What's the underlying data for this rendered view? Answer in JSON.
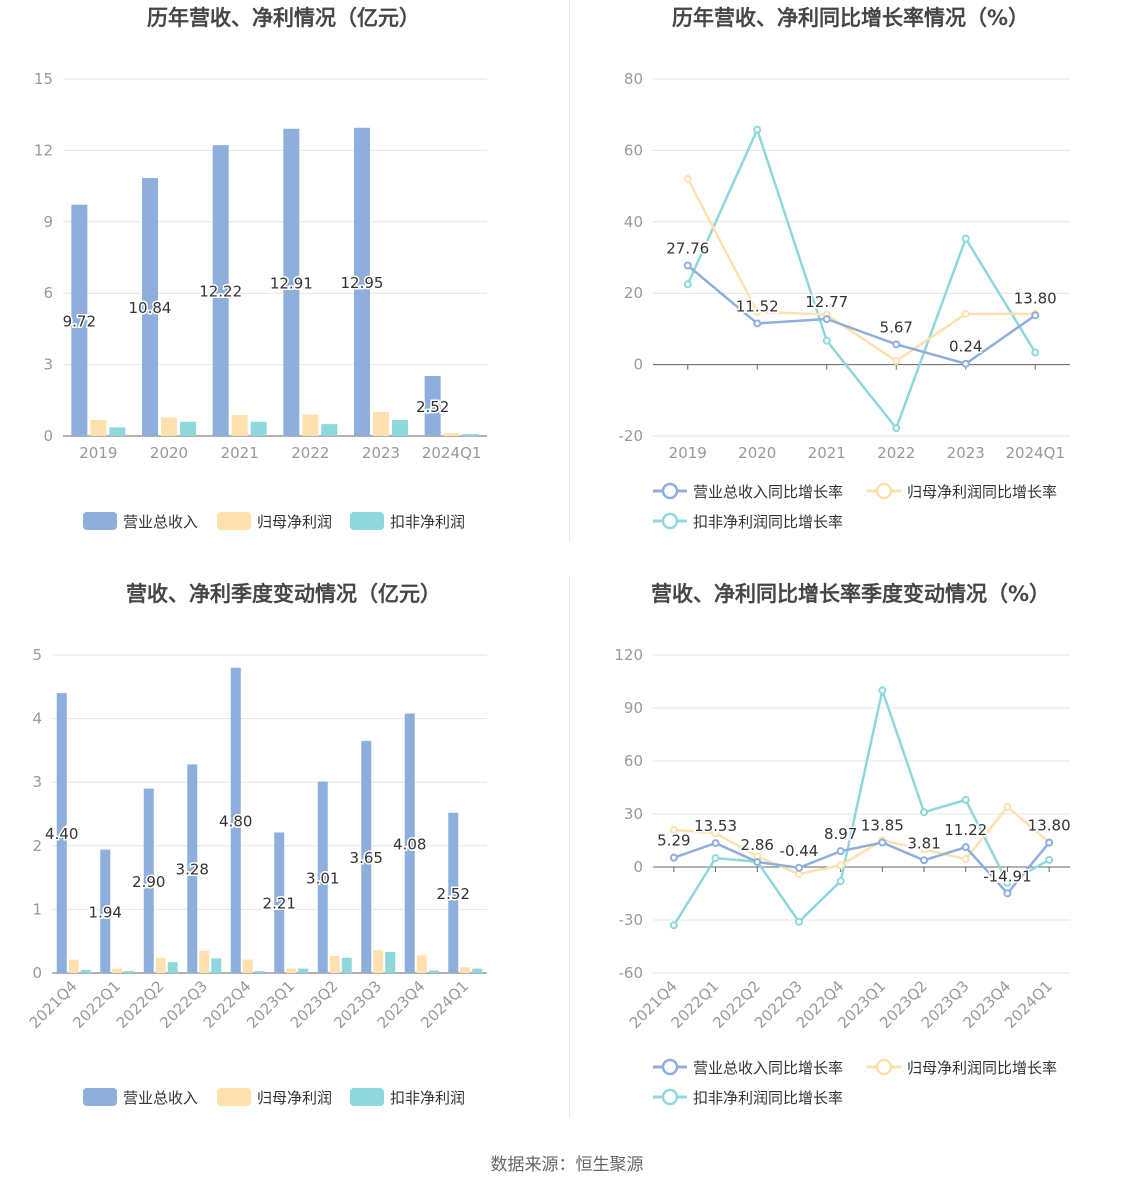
{
  "source": "数据来源：恒生聚源",
  "colors": {
    "revenue": "#8eaedc",
    "net_profit": "#ffe1b0",
    "deducted_profit": "#8ed7db",
    "axis": "#999999",
    "grid": "#e4e4e4",
    "label": "#333333"
  },
  "chart_data": [
    {
      "type": "bar",
      "title": "历年营收、净利情况（亿元）",
      "categories": [
        "2019",
        "2020",
        "2021",
        "2022",
        "2023",
        "2024Q1"
      ],
      "series": [
        {
          "name": "营业总收入",
          "values": [
            9.72,
            10.84,
            12.22,
            12.91,
            12.95,
            2.52
          ]
        },
        {
          "name": "归母净利润",
          "values": [
            0.68,
            0.78,
            0.88,
            0.9,
            1.01,
            0.12
          ]
        },
        {
          "name": "扣非净利润",
          "values": [
            0.36,
            0.6,
            0.6,
            0.5,
            0.67,
            0.08
          ]
        }
      ],
      "data_labels": [
        "9.72",
        "10.84",
        "12.22",
        "12.91",
        "12.95",
        "2.52"
      ],
      "yticks": [
        "0",
        "3",
        "6",
        "9",
        "12",
        "15"
      ],
      "ylim": [
        0,
        15
      ],
      "grid": true,
      "legend": "bottom"
    },
    {
      "type": "line",
      "title": "历年营收、净利同比增长率情况（%）",
      "categories": [
        "2019",
        "2020",
        "2021",
        "2022",
        "2023",
        "2024Q1"
      ],
      "series": [
        {
          "name": "营业总收入同比增长率",
          "values": [
            27.76,
            11.52,
            12.77,
            5.67,
            0.24,
            13.8
          ]
        },
        {
          "name": "归母净利润同比增长率",
          "values": [
            52.0,
            14.8,
            14.0,
            1.0,
            14.2,
            14.2
          ]
        },
        {
          "name": "扣非净利润同比增长率",
          "values": [
            22.5,
            65.8,
            6.7,
            -17.8,
            35.3,
            3.4
          ]
        }
      ],
      "data_labels": [
        "27.76",
        "11.52",
        "12.77",
        "5.67",
        "0.24",
        "13.80"
      ],
      "yticks": [
        "-20",
        "0",
        "20",
        "40",
        "60",
        "80"
      ],
      "ylim": [
        -20,
        80
      ],
      "grid": true,
      "legend": "bottom"
    },
    {
      "type": "bar",
      "title": "营收、净利季度变动情况（亿元）",
      "categories": [
        "2021Q4",
        "2022Q1",
        "2022Q2",
        "2022Q3",
        "2022Q4",
        "2023Q1",
        "2023Q2",
        "2023Q3",
        "2023Q4",
        "2024Q1"
      ],
      "series": [
        {
          "name": "营业总收入",
          "values": [
            4.4,
            1.94,
            2.9,
            3.28,
            4.8,
            2.21,
            3.01,
            3.65,
            4.08,
            2.52
          ]
        },
        {
          "name": "归母净利润",
          "values": [
            0.21,
            0.07,
            0.24,
            0.35,
            0.21,
            0.07,
            0.27,
            0.36,
            0.28,
            0.09
          ]
        },
        {
          "name": "扣非净利润",
          "values": [
            0.05,
            0.03,
            0.17,
            0.23,
            0.03,
            0.07,
            0.24,
            0.33,
            0.04,
            0.07
          ]
        }
      ],
      "data_labels": [
        "4.40",
        "1.94",
        "2.90",
        "3.28",
        "4.80",
        "2.21",
        "3.01",
        "3.65",
        "4.08",
        "2.52"
      ],
      "yticks": [
        "0",
        "1",
        "2",
        "3",
        "4",
        "5"
      ],
      "ylim": [
        0,
        5
      ],
      "grid": true,
      "legend": "bottom"
    },
    {
      "type": "line",
      "title": "营收、净利同比增长率季度变动情况（%）",
      "categories": [
        "2021Q4",
        "2022Q1",
        "2022Q2",
        "2022Q3",
        "2022Q4",
        "2023Q1",
        "2023Q2",
        "2023Q3",
        "2023Q4",
        "2024Q1"
      ],
      "series": [
        {
          "name": "营业总收入同比增长率",
          "values": [
            5.29,
            13.53,
            2.86,
            -0.44,
            8.97,
            13.85,
            3.81,
            11.22,
            -14.91,
            13.8
          ]
        },
        {
          "name": "归母净利润同比增长率",
          "values": [
            21.0,
            19.0,
            6.0,
            -4.0,
            1.0,
            15.0,
            10.0,
            4.5,
            34.0,
            14.0
          ]
        },
        {
          "name": "扣非净利润同比增长率",
          "values": [
            -33.0,
            5.0,
            3.0,
            -31.0,
            -8.0,
            100.0,
            31.0,
            38.0,
            -9.0,
            4.0
          ]
        }
      ],
      "data_labels": [
        "5.29",
        "13.53",
        "2.86",
        "-0.44",
        "8.97",
        "13.85",
        "3.81",
        "11.22",
        "-14.91",
        "13.80"
      ],
      "yticks": [
        "-60",
        "-30",
        "0",
        "30",
        "60",
        "90",
        "120"
      ],
      "ylim": [
        -60,
        120
      ],
      "grid": true,
      "legend": "bottom"
    }
  ]
}
